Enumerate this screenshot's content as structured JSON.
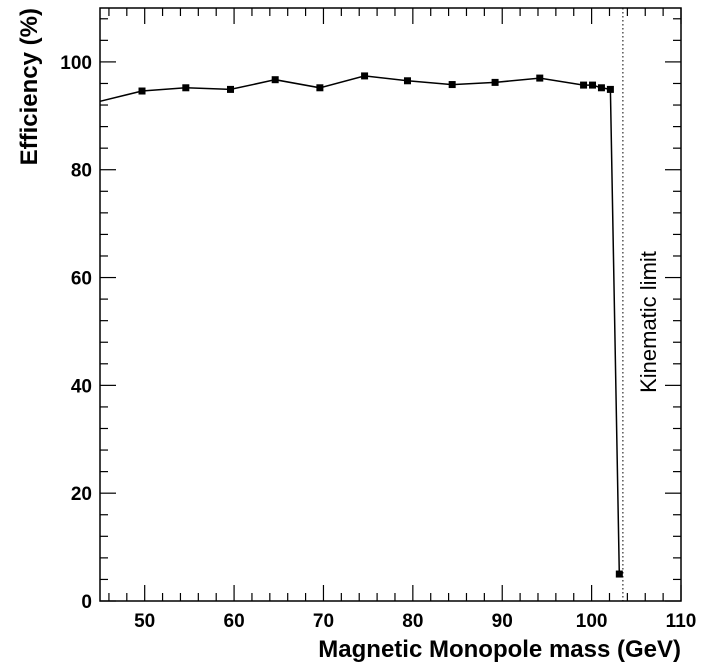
{
  "chart_data": {
    "type": "line",
    "xlabel": "Magnetic Monopole mass (GeV)",
    "ylabel": "Efficiency (%)",
    "xlim": [
      45,
      110
    ],
    "ylim": [
      0,
      110
    ],
    "x_ticks": [
      50,
      60,
      70,
      80,
      90,
      100,
      110
    ],
    "y_ticks": [
      0,
      20,
      40,
      60,
      80,
      100
    ],
    "grid": false,
    "series": [
      {
        "x": [
          45,
          49.7,
          54.6,
          59.6,
          64.6,
          69.6,
          74.6,
          79.4,
          84.4,
          89.2,
          94.2,
          99.1,
          100.1,
          101.1,
          102.1,
          103.1
        ],
        "y": [
          92.7,
          94.6,
          95.2,
          94.9,
          96.7,
          95.2,
          97.4,
          96.5,
          95.8,
          96.2,
          97.0,
          95.7,
          95.7,
          95.2,
          94.9,
          5.0
        ]
      }
    ],
    "annotations": [
      {
        "text": "Kinematic limit",
        "x": 103.5,
        "orientation": "vertical",
        "line_style": "dotted"
      }
    ]
  }
}
